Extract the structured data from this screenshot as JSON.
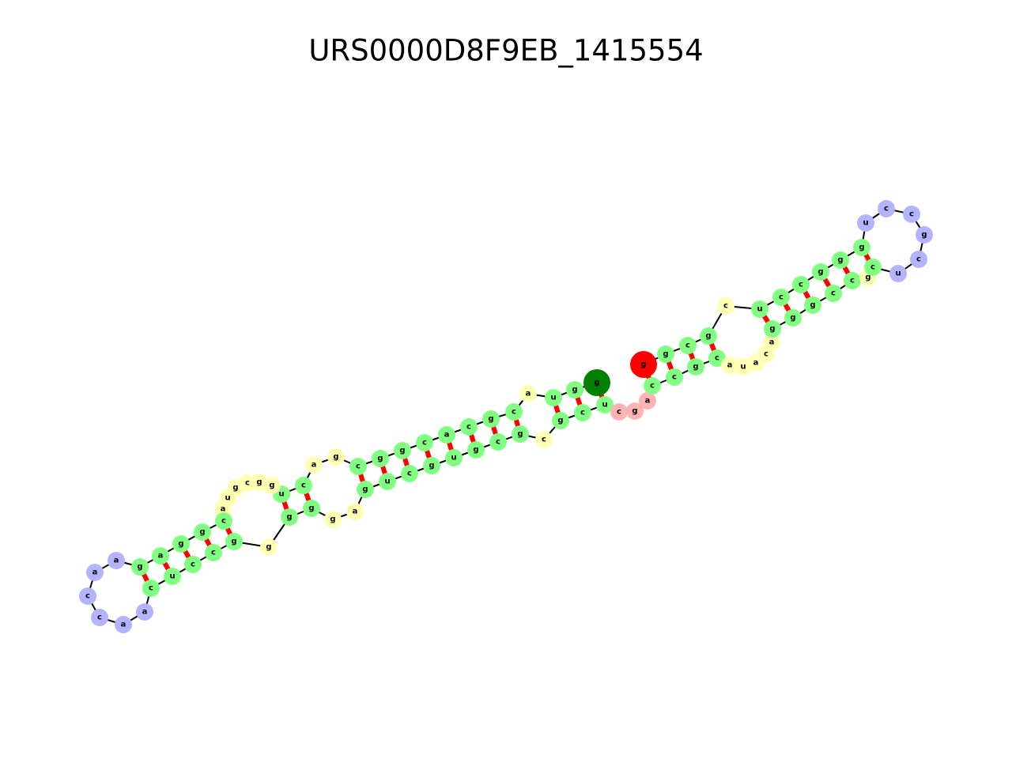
{
  "title": "URS0000D8F9EB_1415554",
  "sequence": [
    "g",
    "g",
    "u",
    "a",
    "c",
    "g",
    "c",
    "a",
    "c",
    "g",
    "g",
    "c",
    "g",
    "a",
    "c",
    "u",
    "g",
    "g",
    "c",
    "g",
    "u",
    "a",
    "c",
    "g",
    "g",
    "a",
    "g",
    "a",
    "a",
    "c",
    "c",
    "a",
    "a",
    "c",
    "u",
    "c",
    "c",
    "g",
    "g",
    "g",
    "g",
    "g",
    "a",
    "g",
    "u",
    "c",
    "g",
    "u",
    "g",
    "c",
    "g",
    "c",
    "g",
    "c",
    "u",
    "c",
    "g",
    "a",
    "c",
    "c",
    "g",
    "c",
    "a",
    "u",
    "a",
    "c",
    "a",
    "g",
    "g",
    "g",
    "c",
    "c",
    "g",
    "c",
    "u",
    "c",
    "g",
    "c",
    "c",
    "u",
    "g",
    "g",
    "g",
    "c",
    "c",
    "u",
    "c",
    "g",
    "c",
    "g",
    "g"
  ]
}
